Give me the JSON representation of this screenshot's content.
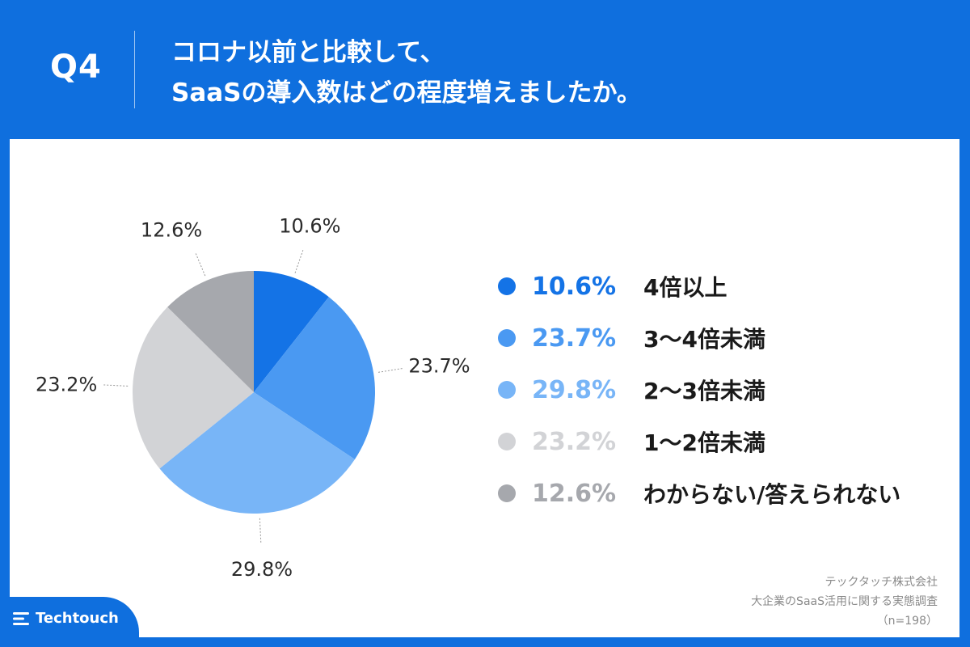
{
  "header": {
    "question_label": "Q4",
    "title_line1": "コロナ以前と比較して、",
    "title_line2": "SaaSの導入数はどの程度増えましたか。"
  },
  "chart_data": {
    "type": "pie",
    "series": [
      {
        "label": "4倍以上",
        "value": 10.6,
        "value_label": "10.6%",
        "color": "#1473e6"
      },
      {
        "label": "3〜4倍未満",
        "value": 23.7,
        "value_label": "23.7%",
        "color": "#4a99f2"
      },
      {
        "label": "2〜3倍未満",
        "value": 29.8,
        "value_label": "29.8%",
        "color": "#78b5f7"
      },
      {
        "label": "1〜2倍未満",
        "value": 23.2,
        "value_label": "23.2%",
        "color": "#d2d3d6"
      },
      {
        "label": "わからない/答えられない",
        "value": 12.6,
        "value_label": "12.6%",
        "color": "#a6a8ad"
      }
    ],
    "legend_position": "right"
  },
  "source": {
    "company": "テックタッチ株式会社",
    "survey": "大企業のSaaS活用に関する実態調査",
    "sample": "（n=198）"
  },
  "logo": {
    "text": "Techtouch"
  }
}
